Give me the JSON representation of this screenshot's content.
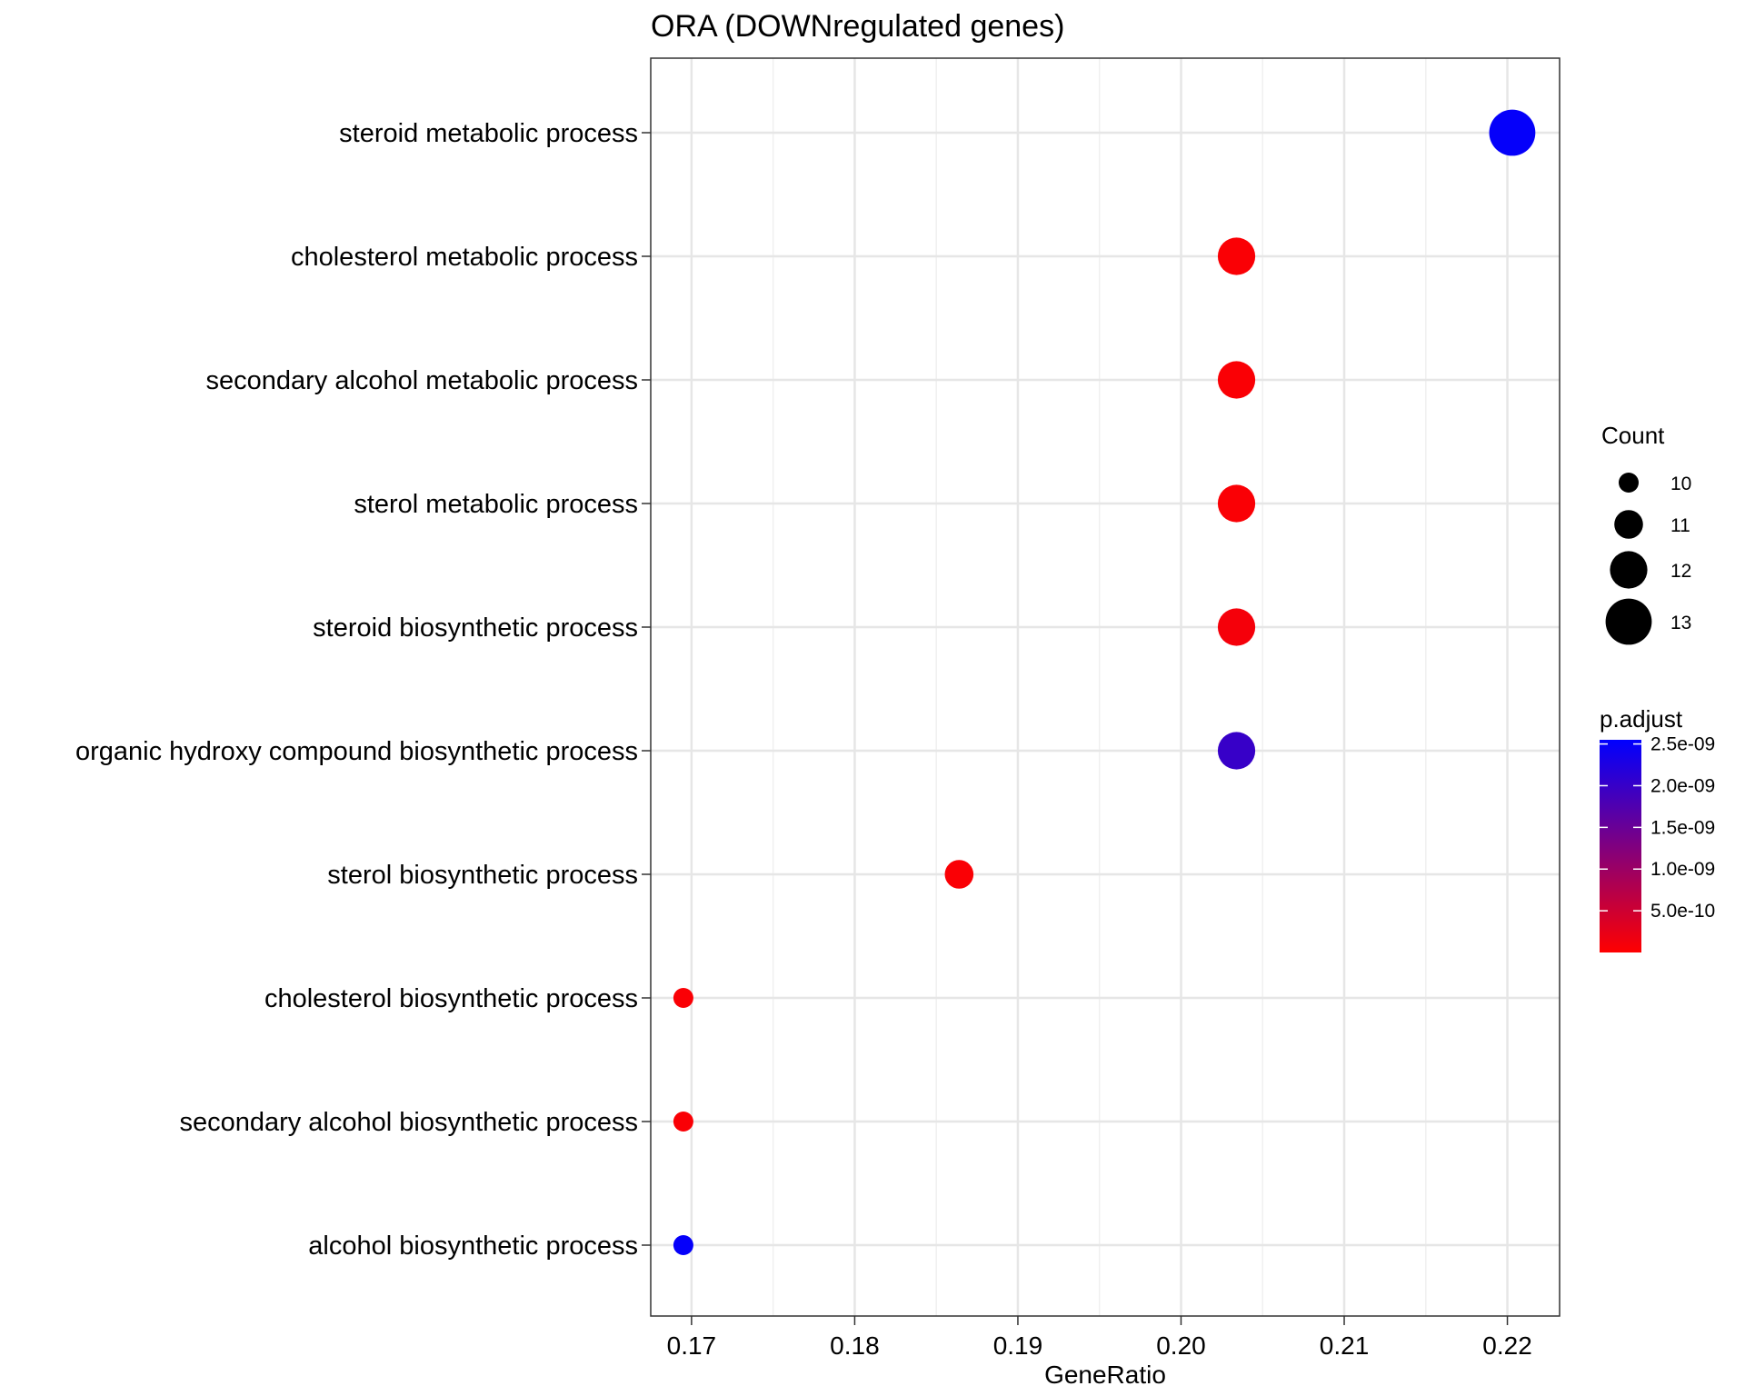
{
  "chart_data": {
    "type": "scatter",
    "title": "ORA (DOWNregulated genes)",
    "xlabel": "GeneRatio",
    "ylabel": "",
    "xlim": [
      0.1675,
      0.2232
    ],
    "x_ticks": [
      "0.17",
      "0.18",
      "0.19",
      "0.20",
      "0.21",
      "0.22"
    ],
    "x_tick_values": [
      0.17,
      0.18,
      0.19,
      0.2,
      0.21,
      0.22
    ],
    "grid": true,
    "points": [
      {
        "term": "steroid metabolic process",
        "gene_ratio": 0.2203,
        "count": 13,
        "p_adjust": 2.5e-09
      },
      {
        "term": "cholesterol metabolic process",
        "gene_ratio": 0.2034,
        "count": 12,
        "p_adjust": 5e-11
      },
      {
        "term": "secondary alcohol metabolic process",
        "gene_ratio": 0.2034,
        "count": 12,
        "p_adjust": 5e-11
      },
      {
        "term": "sterol metabolic process",
        "gene_ratio": 0.2034,
        "count": 12,
        "p_adjust": 5e-11
      },
      {
        "term": "steroid biosynthetic process",
        "gene_ratio": 0.2034,
        "count": 12,
        "p_adjust": 1e-10
      },
      {
        "term": "organic hydroxy compound biosynthetic process",
        "gene_ratio": 0.2034,
        "count": 12,
        "p_adjust": 2e-09
      },
      {
        "term": "sterol biosynthetic process",
        "gene_ratio": 0.1864,
        "count": 11,
        "p_adjust": 5e-11
      },
      {
        "term": "cholesterol biosynthetic process",
        "gene_ratio": 0.1695,
        "count": 10,
        "p_adjust": 5e-11
      },
      {
        "term": "secondary alcohol biosynthetic process",
        "gene_ratio": 0.1695,
        "count": 10,
        "p_adjust": 5e-11
      },
      {
        "term": "alcohol biosynthetic process",
        "gene_ratio": 0.1695,
        "count": 10,
        "p_adjust": 2.5e-09
      }
    ],
    "size_legend": {
      "title": "Count",
      "entries": [
        10,
        11,
        12,
        13
      ]
    },
    "color_legend": {
      "title": "p.adjust",
      "min": 0,
      "max": 2.55e-09,
      "low_color": "#ff0000",
      "high_color": "#0000ff",
      "tick_values": [
        2.5e-09,
        2e-09,
        1.5e-09,
        1e-09,
        5e-10
      ],
      "tick_labels": [
        "2.5e-09",
        "2.0e-09",
        "1.5e-09",
        "1.0e-09",
        "5.0e-10"
      ]
    }
  }
}
